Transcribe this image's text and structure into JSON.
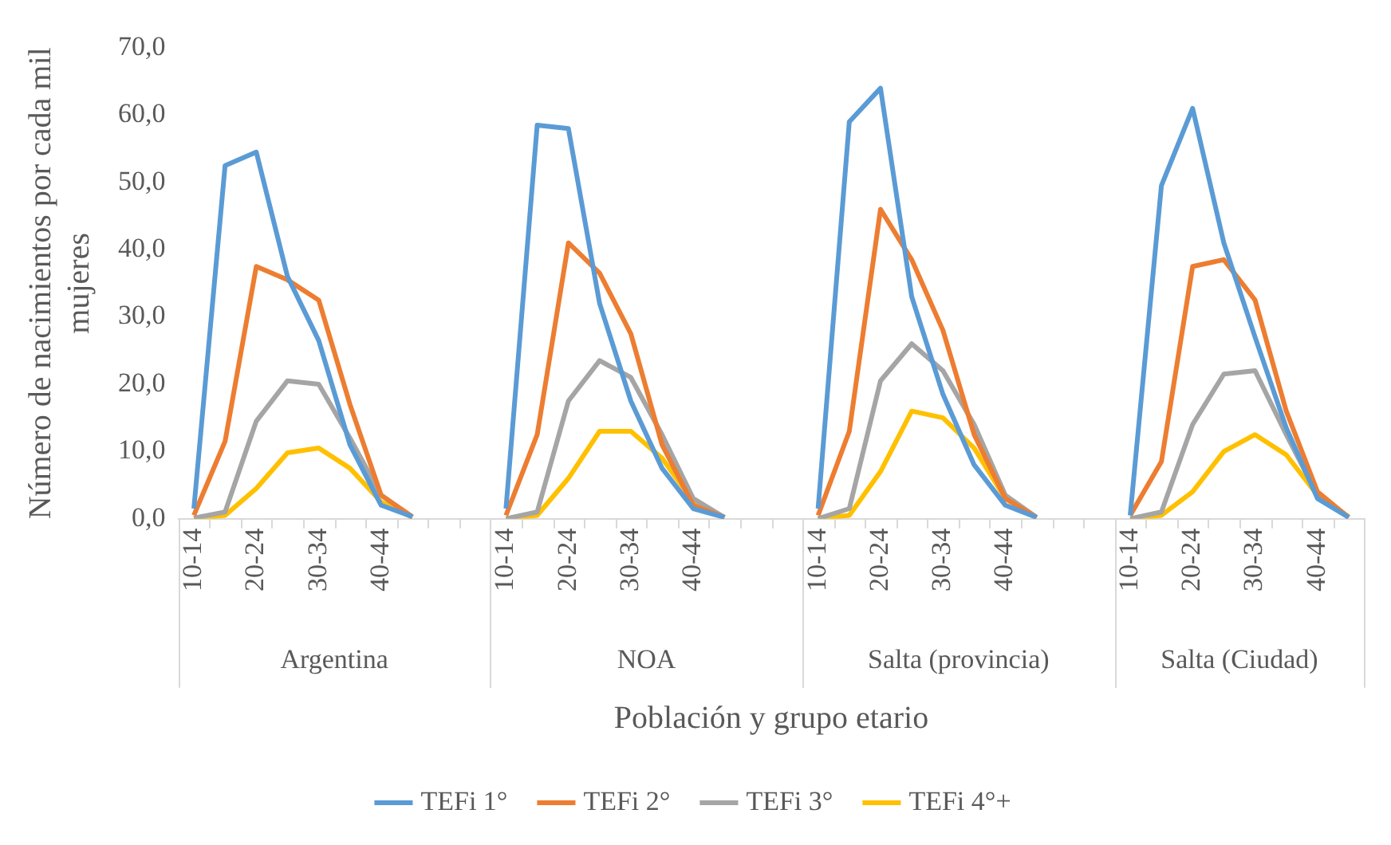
{
  "chart_data": {
    "type": "line",
    "xlabel": "Población y grupo etario",
    "ylabel": "Número de nacimientos por cada mil mujeres",
    "categories": [
      "10-14",
      null,
      "20-24",
      null,
      "30-34",
      null,
      "40-44",
      null,
      null,
      null,
      "10-14",
      null,
      "20-24",
      null,
      "30-34",
      null,
      "40-44",
      null,
      null,
      null,
      "10-14",
      null,
      "20-24",
      null,
      "30-34",
      null,
      "40-44",
      null,
      null,
      null,
      "10-14",
      null,
      "20-24",
      null,
      "30-34",
      null,
      "40-44",
      null
    ],
    "annotations": [
      "Argentina",
      "NOA",
      "Salta (provincia)",
      "Salta (Ciudad)"
    ],
    "series": [
      {
        "name": "TEFi 1°",
        "color": "#5b9bd5",
        "values": [
          1.5,
          52.5,
          54.5,
          36,
          26.5,
          11,
          2,
          0.3,
          null,
          null,
          1.5,
          58.5,
          58,
          32,
          17.5,
          7.5,
          1.5,
          0.2,
          null,
          null,
          1.5,
          59,
          64,
          33,
          18.5,
          8,
          2,
          0.2,
          null,
          null,
          0.5,
          49.5,
          61,
          41,
          27,
          13.5,
          3,
          0.2
        ]
      },
      {
        "name": "TEFi 2°",
        "color": "#ed7d31",
        "values": [
          0.5,
          11.5,
          37.5,
          35.5,
          32.5,
          17,
          3.5,
          0.3,
          null,
          null,
          0.5,
          12.5,
          41,
          36.5,
          27.5,
          11,
          2,
          0.2,
          null,
          null,
          0.5,
          13,
          46,
          38.5,
          28,
          12.5,
          3,
          0.2,
          null,
          null,
          0.5,
          8.5,
          37.5,
          38.5,
          32.5,
          16,
          4,
          0.2
        ]
      },
      {
        "name": "TEFi 3°",
        "color": "#a5a5a5",
        "values": [
          0.1,
          1,
          14.5,
          20.5,
          20,
          12,
          3.5,
          0.2,
          null,
          null,
          0,
          1,
          17.5,
          23.5,
          21,
          12.5,
          3,
          0.2,
          null,
          null,
          0,
          1.5,
          20.5,
          26,
          22,
          14,
          3.5,
          0.2,
          null,
          null,
          0,
          1,
          14,
          21.5,
          22,
          12.5,
          3.5,
          0.2
        ]
      },
      {
        "name": "TEFi 4°+",
        "color": "#ffc000",
        "values": [
          0,
          0.5,
          4.5,
          9.8,
          10.5,
          7.5,
          2.5,
          0.2,
          null,
          null,
          0,
          0.5,
          6,
          13,
          13,
          9,
          2.5,
          0.2,
          null,
          null,
          0,
          0.5,
          7,
          16,
          15,
          10.5,
          3,
          0.2,
          null,
          null,
          0,
          0.5,
          4,
          10,
          12.5,
          9.5,
          3.5,
          0.3
        ]
      }
    ],
    "ylim": [
      0,
      70
    ],
    "yticks": [
      {
        "value": 0,
        "label": "0,0"
      },
      {
        "value": 10,
        "label": "10,0"
      },
      {
        "value": 20,
        "label": "20,0"
      },
      {
        "value": 30,
        "label": "30,0"
      },
      {
        "value": 40,
        "label": "40,0"
      },
      {
        "value": 50,
        "label": "50,0"
      },
      {
        "value": 60,
        "label": "60,0"
      },
      {
        "value": 70,
        "label": "70,0"
      }
    ],
    "grid": false,
    "legend": "bottom",
    "marker": "none",
    "line_style": "solid"
  }
}
